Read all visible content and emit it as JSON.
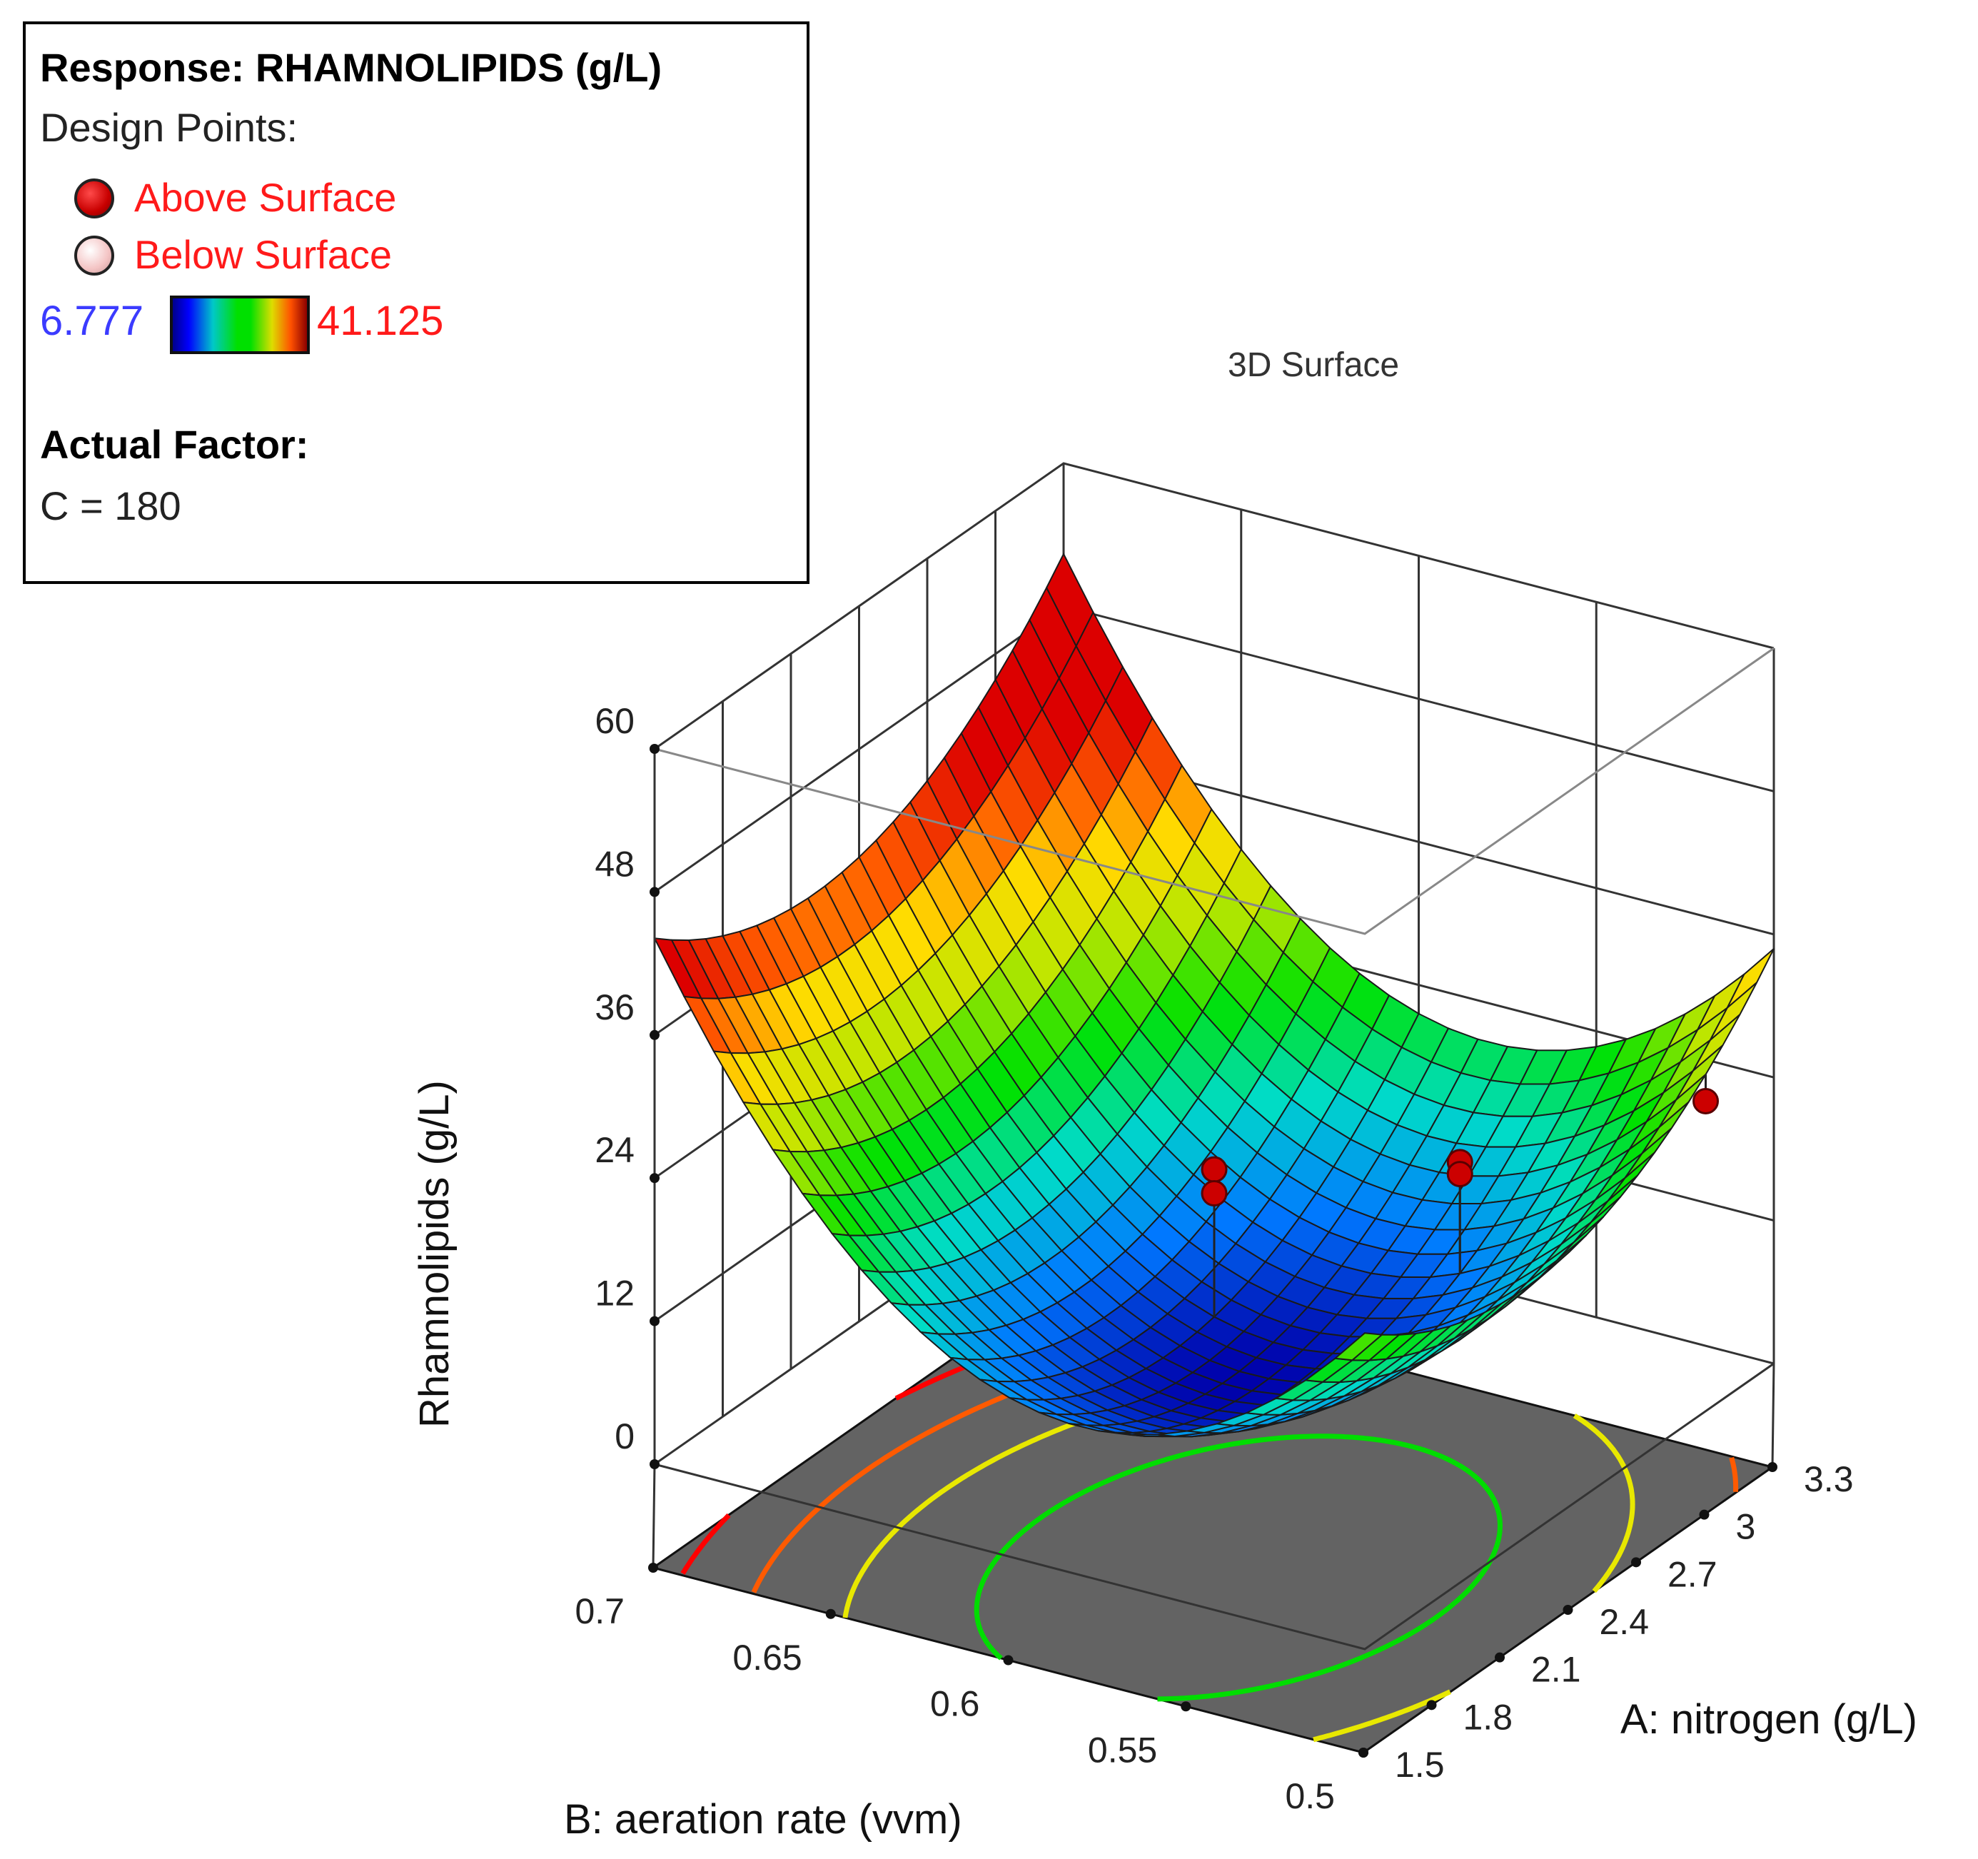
{
  "legend": {
    "response_title": "Response: RHAMNOLIPIDS (g/L)",
    "design_points_label": "Design Points:",
    "above_label": "Above Surface",
    "below_label": "Below Surface",
    "color_min": "6.777",
    "color_max": "41.125",
    "actual_factor_label": "Actual Factor:",
    "actual_factor_value": "C = 180"
  },
  "colors": {
    "above_point": "#cc0000",
    "below_point": "#f4c4c4",
    "floor": "#636363",
    "grid_line": "#222222"
  },
  "chart_data": {
    "type": "surface3d",
    "title": "3D Surface",
    "xlabel": "A: nitrogen (g/L)",
    "ylabel": "B: aeration rate (vvm)",
    "zlabel": "Rhamnolipids (g/L)",
    "x_ticks": [
      "1.5",
      "1.8",
      "2.1",
      "2.4",
      "2.7",
      "3",
      "3.3"
    ],
    "y_ticks": [
      "0.5",
      "0.55",
      "0.6",
      "0.65",
      "0.7"
    ],
    "z_ticks": [
      "0",
      "12",
      "24",
      "36",
      "48",
      "60"
    ],
    "xlim": [
      1.5,
      3.3
    ],
    "ylim": [
      0.5,
      0.7
    ],
    "zlim": [
      0,
      60
    ],
    "surface_model": {
      "form": "z = z0 + a*(x - x0)^2 + b*(y - y0)^2",
      "x0": 2.2,
      "y0": 0.58,
      "z0": 6.8,
      "a": 11.5,
      "b": 2200
    },
    "color_scale": {
      "min": 6.777,
      "max": 41.125
    },
    "contour_levels": [
      {
        "value": 13.5,
        "color": "#00dd00"
      },
      {
        "value": 22,
        "color": "#e8e800"
      },
      {
        "value": 31,
        "color": "#ff5a00"
      },
      {
        "value": 40,
        "color": "#ff0000"
      },
      {
        "value": 50,
        "color": "#ff0000"
      }
    ],
    "design_points": [
      {
        "x": 2.4,
        "y": 0.6,
        "z": 20.5,
        "position": "above"
      },
      {
        "x": 2.4,
        "y": 0.6,
        "z": 18.5,
        "position": "above"
      },
      {
        "x": 2.7,
        "y": 0.55,
        "z": 21.0,
        "position": "above"
      },
      {
        "x": 2.7,
        "y": 0.55,
        "z": 20.0,
        "position": "above"
      },
      {
        "x": 3.0,
        "y": 0.5,
        "z": 26.0,
        "position": "above"
      }
    ]
  }
}
